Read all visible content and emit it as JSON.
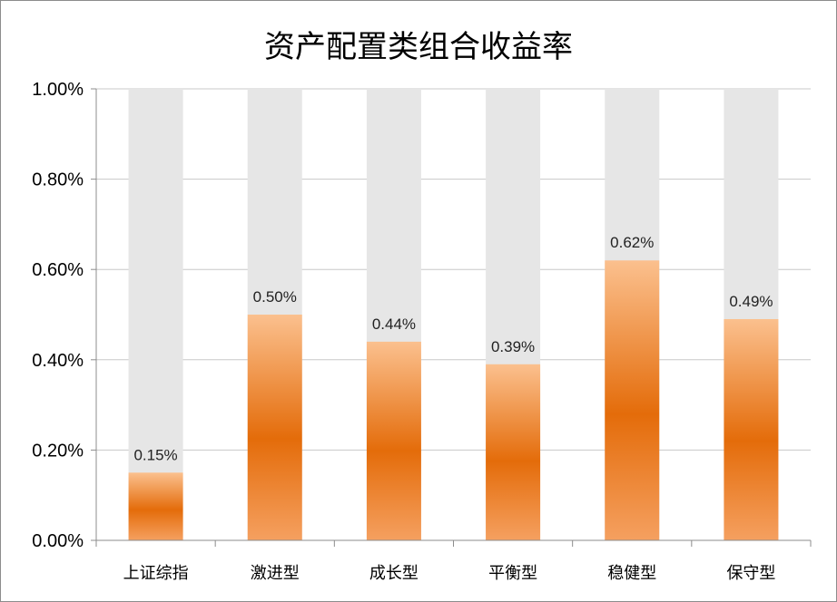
{
  "chart_data": {
    "type": "bar",
    "title": "资产配置类组合收益率",
    "categories": [
      "上证综指",
      "激进型",
      "成长型",
      "平衡型",
      "稳健型",
      "保守型"
    ],
    "values": [
      0.15,
      0.5,
      0.44,
      0.39,
      0.62,
      0.49
    ],
    "data_labels": [
      "0.15%",
      "0.50%",
      "0.44%",
      "0.39%",
      "0.62%",
      "0.49%"
    ],
    "y_tick_labels": [
      "0.00%",
      "0.20%",
      "0.40%",
      "0.60%",
      "0.80%",
      "1.00%"
    ],
    "ylim": [
      0,
      1.0
    ],
    "y_unit": "%",
    "grid": true,
    "legend": "none",
    "background_bar_value": 1.0,
    "colors": {
      "bar_edge": "#f5a060",
      "bar_center": "#e46c0a",
      "bar_light": "#fbc08e",
      "background_bar": "#e6e6e6",
      "grid": "#c8c8c8",
      "axis": "#8c8c8c"
    }
  }
}
